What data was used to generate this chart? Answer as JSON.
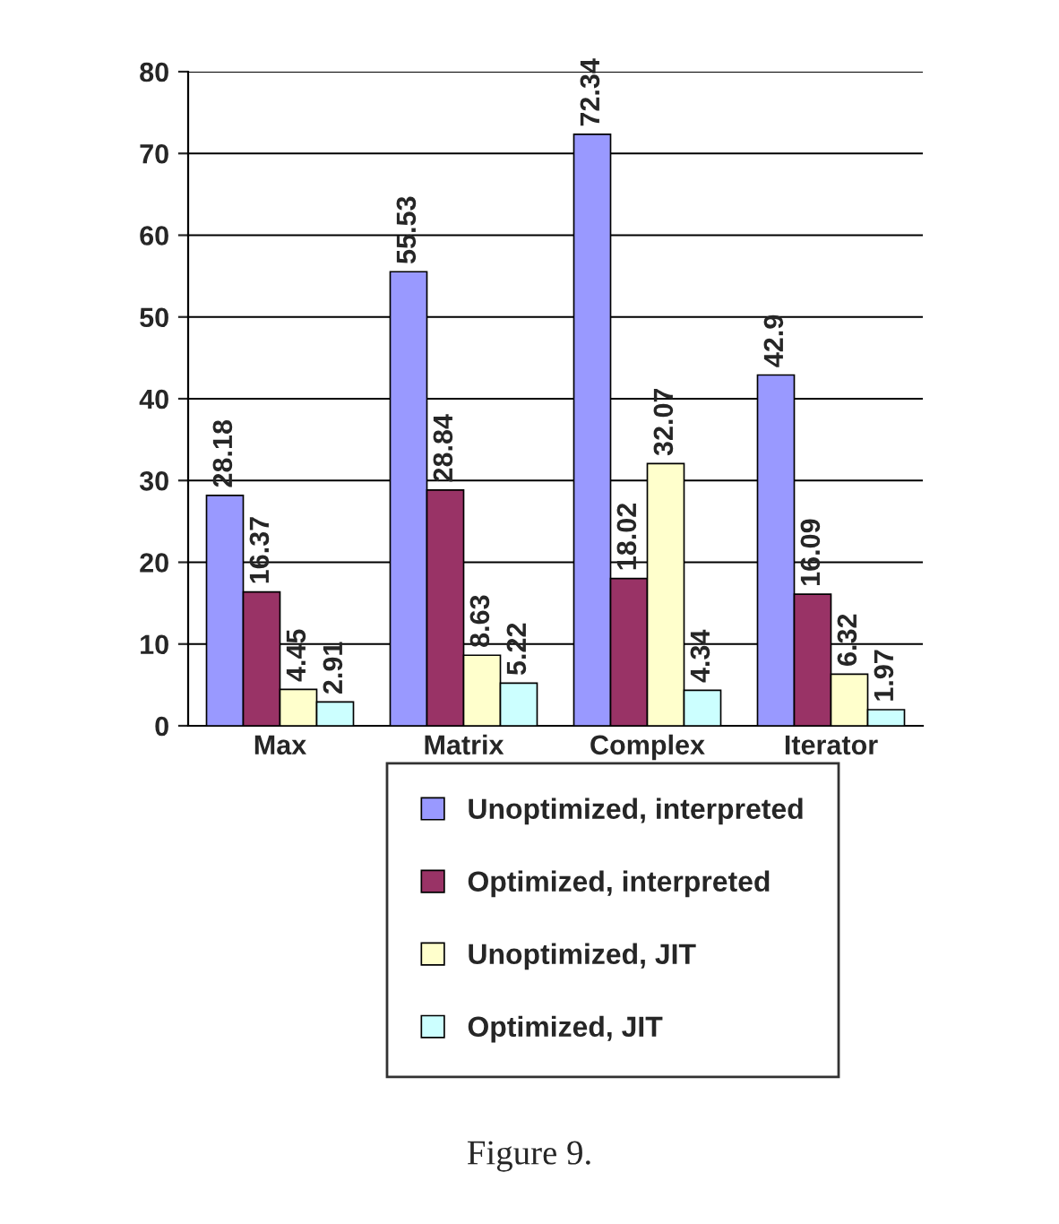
{
  "chart_data": {
    "type": "bar",
    "categories": [
      "Max",
      "Matrix",
      "Complex",
      "Iterator"
    ],
    "series": [
      {
        "name": "Unoptimized, interpreted",
        "color": "#9999ff",
        "values": [
          28.18,
          55.53,
          72.34,
          42.9
        ]
      },
      {
        "name": "Optimized, interpreted",
        "color": "#993366",
        "values": [
          16.37,
          28.84,
          18.02,
          16.09
        ]
      },
      {
        "name": "Unoptimized, JIT",
        "color": "#ffffcc",
        "values": [
          4.45,
          8.63,
          32.07,
          6.32
        ]
      },
      {
        "name": "Optimized, JIT",
        "color": "#ccffff",
        "values": [
          2.91,
          5.22,
          4.34,
          1.97
        ]
      }
    ],
    "ylim": [
      0,
      80
    ],
    "yticks": [
      0,
      10,
      20,
      30,
      40,
      50,
      60,
      70,
      80
    ],
    "grid": "y",
    "legend": "bottom",
    "data_labels": true,
    "annotations": [
      "Figure 9."
    ]
  }
}
